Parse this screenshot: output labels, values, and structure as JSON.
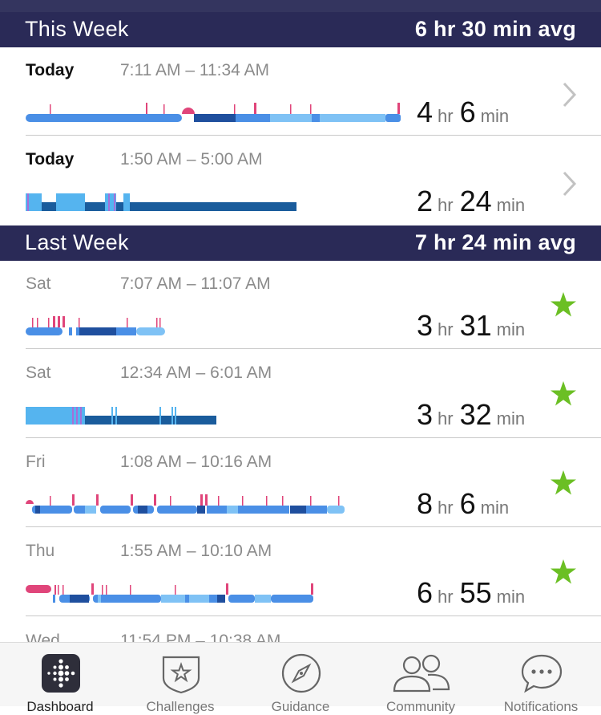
{
  "colors": {
    "header_bg": "#2a2a57",
    "awake": "#e0457a",
    "rem": "#7fc2f5",
    "light": "#4a8fe6",
    "deep": "#1f4f9e",
    "asleep_dark": "#1a5c9c",
    "asleep_light": "#55b4ef",
    "restless": "#a46fd9",
    "star": "#6bbf24"
  },
  "this_week": {
    "title": "This Week",
    "avg": "6 hr 30 min avg"
  },
  "last_week": {
    "title": "Last Week",
    "avg": "7 hr 24 min avg"
  },
  "sessions": [
    {
      "day": "Today",
      "time": "7:11 AM – 11:34 AM",
      "hours": "4",
      "minutes": "6",
      "hr_unit": "hr",
      "min_unit": "min",
      "badge": "chevron-right-icon"
    },
    {
      "day": "Today",
      "time": "1:50 AM – 5:00 AM",
      "hours": "2",
      "minutes": "24",
      "hr_unit": "hr",
      "min_unit": "min",
      "badge": "chevron-right-icon"
    },
    {
      "day": "Sat",
      "time": "7:07 AM – 11:07 AM",
      "hours": "3",
      "minutes": "31",
      "hr_unit": "hr",
      "min_unit": "min",
      "badge": "star-icon"
    },
    {
      "day": "Sat",
      "time": "12:34 AM – 6:01 AM",
      "hours": "3",
      "minutes": "32",
      "hr_unit": "hr",
      "min_unit": "min",
      "badge": "star-icon"
    },
    {
      "day": "Fri",
      "time": "1:08 AM – 10:16 AM",
      "hours": "8",
      "minutes": "6",
      "hr_unit": "hr",
      "min_unit": "min",
      "badge": "star-icon"
    },
    {
      "day": "Thu",
      "time": "1:55 AM – 10:10 AM",
      "hours": "6",
      "minutes": "55",
      "hr_unit": "hr",
      "min_unit": "min",
      "badge": "star-icon"
    }
  ],
  "partial_session": {
    "day": "Wed",
    "time": "11:54 PM – 10:38 AM"
  },
  "tabs": [
    {
      "label": "Dashboard",
      "icon": "fitbit-dots-icon",
      "active": true
    },
    {
      "label": "Challenges",
      "icon": "star-badge-icon",
      "active": false
    },
    {
      "label": "Guidance",
      "icon": "compass-icon",
      "active": false
    },
    {
      "label": "Community",
      "icon": "people-icon",
      "active": false
    },
    {
      "label": "Notifications",
      "icon": "chat-bubble-icon",
      "active": false
    }
  ]
}
